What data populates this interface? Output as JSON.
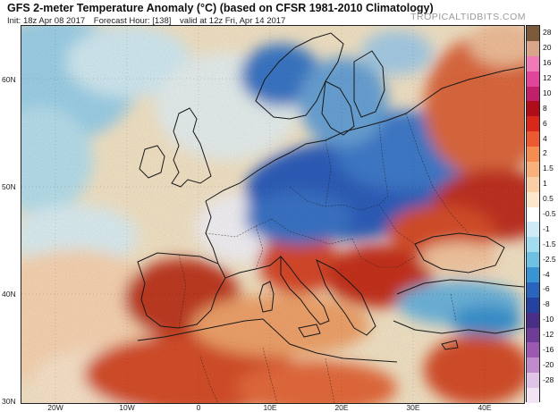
{
  "header": {
    "title": "GFS 2-meter Temperature Anomaly (°C) (based on CFSR 1981-2010 Climatology)",
    "init": "Init: 18z Apr 08 2017",
    "forecast_hour": "Forecast Hour: [138]",
    "valid": "valid at 12z Fri, Apr 14 2017",
    "brand": "TROPICALTIDBITS.COM"
  },
  "map": {
    "latitude_labels": [
      "60N",
      "50N",
      "40N",
      "30N"
    ],
    "longitude_labels": [
      "20W",
      "10W",
      "0",
      "10E",
      "20E",
      "30E",
      "40E"
    ],
    "regions": [
      {
        "name": "Iberia",
        "anomaly": "warm"
      },
      {
        "name": "North Africa",
        "anomaly": "warm"
      },
      {
        "name": "Central Europe",
        "anomaly": "cold"
      },
      {
        "name": "Scandinavia",
        "anomaly": "cold"
      },
      {
        "name": "Eastern Europe / Russia",
        "anomaly": "warm"
      },
      {
        "name": "Turkey",
        "anomaly": "cold"
      }
    ]
  },
  "colorbar": {
    "labels": [
      "28",
      "20",
      "16",
      "12",
      "10",
      "8",
      "6",
      "4",
      "2",
      "1.5",
      "1",
      "0.5",
      "-0.5",
      "-1",
      "-1.5",
      "-2.5",
      "-4",
      "-6",
      "-8",
      "-10",
      "-12",
      "-16",
      "-20",
      "-28"
    ],
    "colors": [
      "#7a5a3a",
      "#d8a48a",
      "#f07ab8",
      "#e0459a",
      "#c0206a",
      "#b00d1a",
      "#d8281c",
      "#ec5a32",
      "#f58d52",
      "#f8b07c",
      "#fbcfa6",
      "#fce6cc",
      "#ffffff",
      "#cfecf6",
      "#a3dbef",
      "#6fc1e4",
      "#3a94d2",
      "#2b64bd",
      "#2542a0",
      "#4a2f86",
      "#6f3d97",
      "#9b5ab0",
      "#c08bcb",
      "#e0c4e6",
      "#f3e4f4"
    ]
  }
}
